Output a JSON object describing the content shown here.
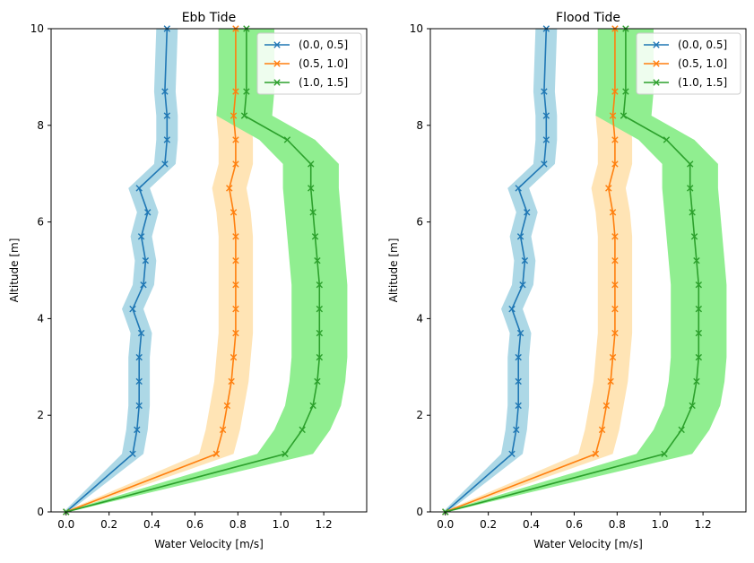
{
  "chart_data": [
    {
      "type": "line",
      "title": "Ebb Tide",
      "xlabel": "Water Velocity [m/s]",
      "ylabel": "Altitude [m]",
      "xlim": [
        -0.07,
        1.4
      ],
      "ylim": [
        0,
        10
      ],
      "xticks": [
        "0.0",
        "0.2",
        "0.4",
        "0.6",
        "0.8",
        "1.0",
        "1.2"
      ],
      "yticks": [
        "0",
        "2",
        "4",
        "6",
        "8",
        "10"
      ],
      "grid": false,
      "legend_position": "upper right",
      "series": [
        {
          "name": "(0.0, 0.5]",
          "color": "#1f77b4",
          "band_color": "#add8e6",
          "marker": "x",
          "altitude": [
            0,
            1.2,
            1.7,
            2.2,
            2.7,
            3.2,
            3.7,
            4.2,
            4.7,
            5.2,
            5.7,
            6.2,
            6.7,
            7.2,
            7.7,
            8.2,
            8.7,
            10
          ],
          "velocity": [
            0.0,
            0.31,
            0.33,
            0.34,
            0.34,
            0.34,
            0.35,
            0.31,
            0.36,
            0.37,
            0.35,
            0.38,
            0.34,
            0.46,
            0.47,
            0.47,
            0.46,
            0.47
          ],
          "band_halfwidth": 0.05
        },
        {
          "name": "(0.5, 1.0]",
          "color": "#ff7f0e",
          "band_color": "#ffe4b5",
          "marker": "x",
          "altitude": [
            0,
            1.2,
            1.7,
            2.2,
            2.7,
            3.2,
            3.7,
            4.2,
            4.7,
            5.2,
            5.7,
            6.2,
            6.7,
            7.2,
            7.7,
            8.2,
            8.7,
            10
          ],
          "velocity": [
            0.0,
            0.7,
            0.73,
            0.75,
            0.77,
            0.78,
            0.79,
            0.79,
            0.79,
            0.79,
            0.79,
            0.78,
            0.76,
            0.79,
            0.79,
            0.78,
            0.79,
            0.79
          ],
          "band_halfwidth": 0.08
        },
        {
          "name": "(1.0, 1.5]",
          "color": "#2ca02c",
          "band_color": "#90ee90",
          "marker": "x",
          "altitude": [
            0,
            1.2,
            1.7,
            2.2,
            2.7,
            3.2,
            3.7,
            4.2,
            4.7,
            5.2,
            5.7,
            6.2,
            6.7,
            7.2,
            7.7,
            8.2,
            8.7,
            10
          ],
          "velocity": [
            0.0,
            1.02,
            1.1,
            1.15,
            1.17,
            1.18,
            1.18,
            1.18,
            1.18,
            1.17,
            1.16,
            1.15,
            1.14,
            1.14,
            1.03,
            0.83,
            0.84,
            0.84
          ],
          "band_halfwidth": 0.13
        }
      ]
    },
    {
      "type": "line",
      "title": "Flood Tide",
      "xlabel": "Water Velocity [m/s]",
      "ylabel": "Altitude [m]",
      "xlim": [
        -0.07,
        1.4
      ],
      "ylim": [
        0,
        10
      ],
      "xticks": [
        "0.0",
        "0.2",
        "0.4",
        "0.6",
        "0.8",
        "1.0",
        "1.2"
      ],
      "yticks": [
        "0",
        "2",
        "4",
        "6",
        "8",
        "10"
      ],
      "grid": false,
      "legend_position": "upper right",
      "series": [
        {
          "name": "(0.0, 0.5]",
          "color": "#1f77b4",
          "band_color": "#add8e6",
          "marker": "x",
          "altitude": [
            0,
            1.2,
            1.7,
            2.2,
            2.7,
            3.2,
            3.7,
            4.2,
            4.7,
            5.2,
            5.7,
            6.2,
            6.7,
            7.2,
            7.7,
            8.2,
            8.7,
            10
          ],
          "velocity": [
            0.0,
            0.31,
            0.33,
            0.34,
            0.34,
            0.34,
            0.35,
            0.31,
            0.36,
            0.37,
            0.35,
            0.38,
            0.34,
            0.46,
            0.47,
            0.47,
            0.46,
            0.47
          ],
          "band_halfwidth": 0.05
        },
        {
          "name": "(0.5, 1.0]",
          "color": "#ff7f0e",
          "band_color": "#ffe4b5",
          "marker": "x",
          "altitude": [
            0,
            1.2,
            1.7,
            2.2,
            2.7,
            3.2,
            3.7,
            4.2,
            4.7,
            5.2,
            5.7,
            6.2,
            6.7,
            7.2,
            7.7,
            8.2,
            8.7,
            10
          ],
          "velocity": [
            0.0,
            0.7,
            0.73,
            0.75,
            0.77,
            0.78,
            0.79,
            0.79,
            0.79,
            0.79,
            0.79,
            0.78,
            0.76,
            0.79,
            0.79,
            0.78,
            0.79,
            0.79
          ],
          "band_halfwidth": 0.08
        },
        {
          "name": "(1.0, 1.5]",
          "color": "#2ca02c",
          "band_color": "#90ee90",
          "marker": "x",
          "altitude": [
            0,
            1.2,
            1.7,
            2.2,
            2.7,
            3.2,
            3.7,
            4.2,
            4.7,
            5.2,
            5.7,
            6.2,
            6.7,
            7.2,
            7.7,
            8.2,
            8.7,
            10
          ],
          "velocity": [
            0.0,
            1.02,
            1.1,
            1.15,
            1.17,
            1.18,
            1.18,
            1.18,
            1.18,
            1.17,
            1.16,
            1.15,
            1.14,
            1.14,
            1.03,
            0.83,
            0.84,
            0.84
          ],
          "band_halfwidth": 0.13
        }
      ]
    }
  ]
}
